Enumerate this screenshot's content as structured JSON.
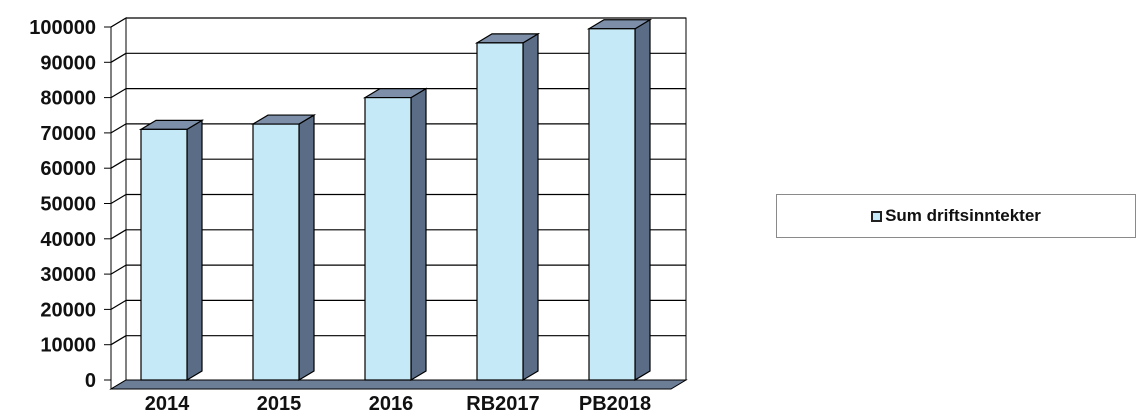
{
  "chart_data": {
    "type": "bar",
    "categories": [
      "2014",
      "2015",
      "2016",
      "RB2017",
      "PB2018"
    ],
    "series": [
      {
        "name": "Sum driftsinntekter",
        "values": [
          71000,
          72500,
          80000,
          95500,
          99500
        ]
      }
    ],
    "ylim": [
      0,
      100000
    ],
    "yticks": [
      "0",
      "10000",
      "20000",
      "30000",
      "40000",
      "50000",
      "60000",
      "70000",
      "80000",
      "90000",
      "100000"
    ],
    "grid": true,
    "legend_position": "right",
    "colors": {
      "bar_front": "#c6e9f7",
      "bar_side": "#5b6d86",
      "bar_top": "#7d8fa8",
      "gridline": "#000000",
      "floor": "#6c7d96"
    }
  },
  "legend": {
    "label": "Sum driftsinntekter"
  }
}
